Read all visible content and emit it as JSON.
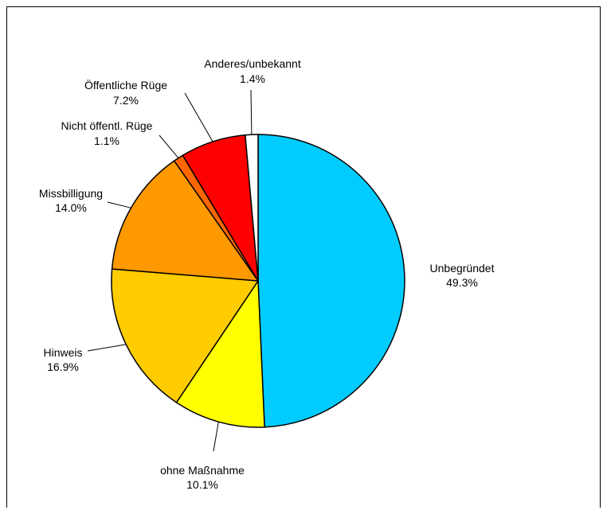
{
  "chart_data": {
    "type": "pie",
    "title": "",
    "start": "12 o'clock",
    "direction": "clockwise",
    "slices": [
      {
        "label": "Unbegründet",
        "value": 49.3,
        "value_text": "49.3%",
        "color": "#00CCFF"
      },
      {
        "label": "ohne Maßnahme",
        "value": 10.1,
        "value_text": "10.1%",
        "color": "#FFFF00"
      },
      {
        "label": "Hinweis",
        "value": 16.9,
        "value_text": "16.9%",
        "color": "#FFCC00"
      },
      {
        "label": "Missbilligung",
        "value": 14.0,
        "value_text": "14.0%",
        "color": "#FF9900"
      },
      {
        "label": "Nicht öffentl. Rüge",
        "value": 1.1,
        "value_text": "1.1%",
        "color": "#FF6600"
      },
      {
        "label": "Öffentliche Rüge",
        "value": 7.2,
        "value_text": "7.2%",
        "color": "#FF0000"
      },
      {
        "label": "Anderes/unbekannt",
        "value": 1.4,
        "value_text": "1.4%",
        "color": "#FFFFFF"
      }
    ]
  }
}
